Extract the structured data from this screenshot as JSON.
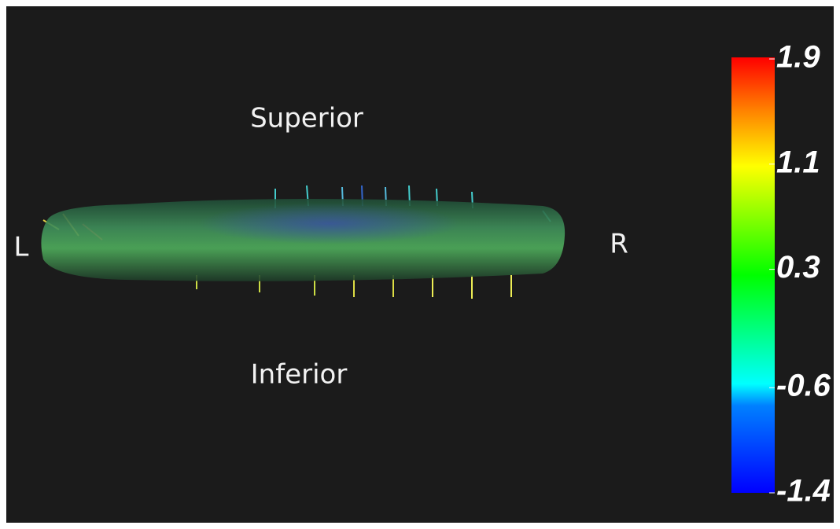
{
  "labels": {
    "superior": "Superior",
    "inferior": "Inferior",
    "left": "L",
    "right": "R"
  },
  "colorbar": {
    "lim": [
      -1.4,
      1.9
    ],
    "ticks": [
      1.9,
      1.1,
      0.3,
      -0.6,
      -1.4
    ]
  }
}
